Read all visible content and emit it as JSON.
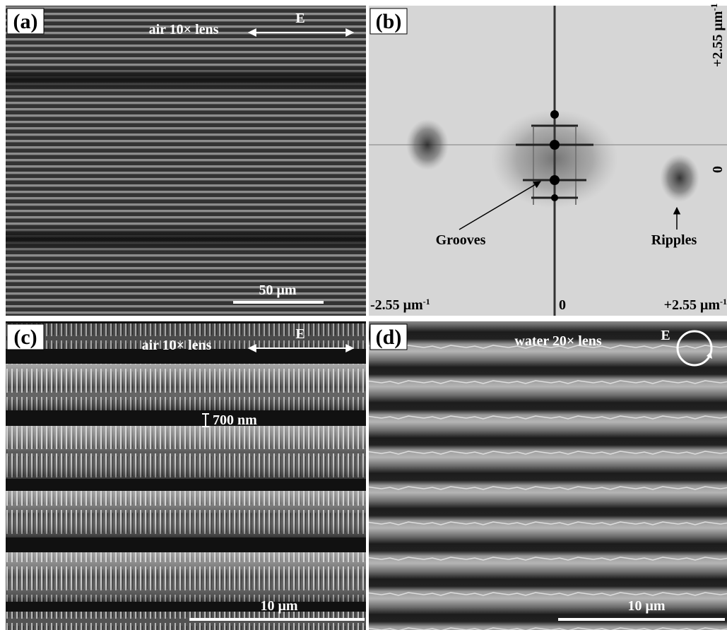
{
  "panels": [
    {
      "label": "(a)",
      "caption": "air  10× lens",
      "field": "E",
      "scale_bar": "50 μm"
    },
    {
      "label": "(b)",
      "y_top": "+2.55 μm",
      "y_top_exp": "-1",
      "y_zero": "0",
      "annotations": [
        "Grooves",
        "Ripples"
      ],
      "x_left": "-2.55 μm",
      "x_left_exp": "-1",
      "x_zero": "0",
      "x_right": "+2.55 μm",
      "x_right_exp": "-1"
    },
    {
      "label": "(c)",
      "caption": "air  10× lens",
      "field": "E",
      "period_label": "700 nm",
      "scale_bar": "10 μm"
    },
    {
      "label": "(d)",
      "caption": "water   20× lens",
      "field": "E",
      "scale_bar": "10 μm"
    }
  ]
}
